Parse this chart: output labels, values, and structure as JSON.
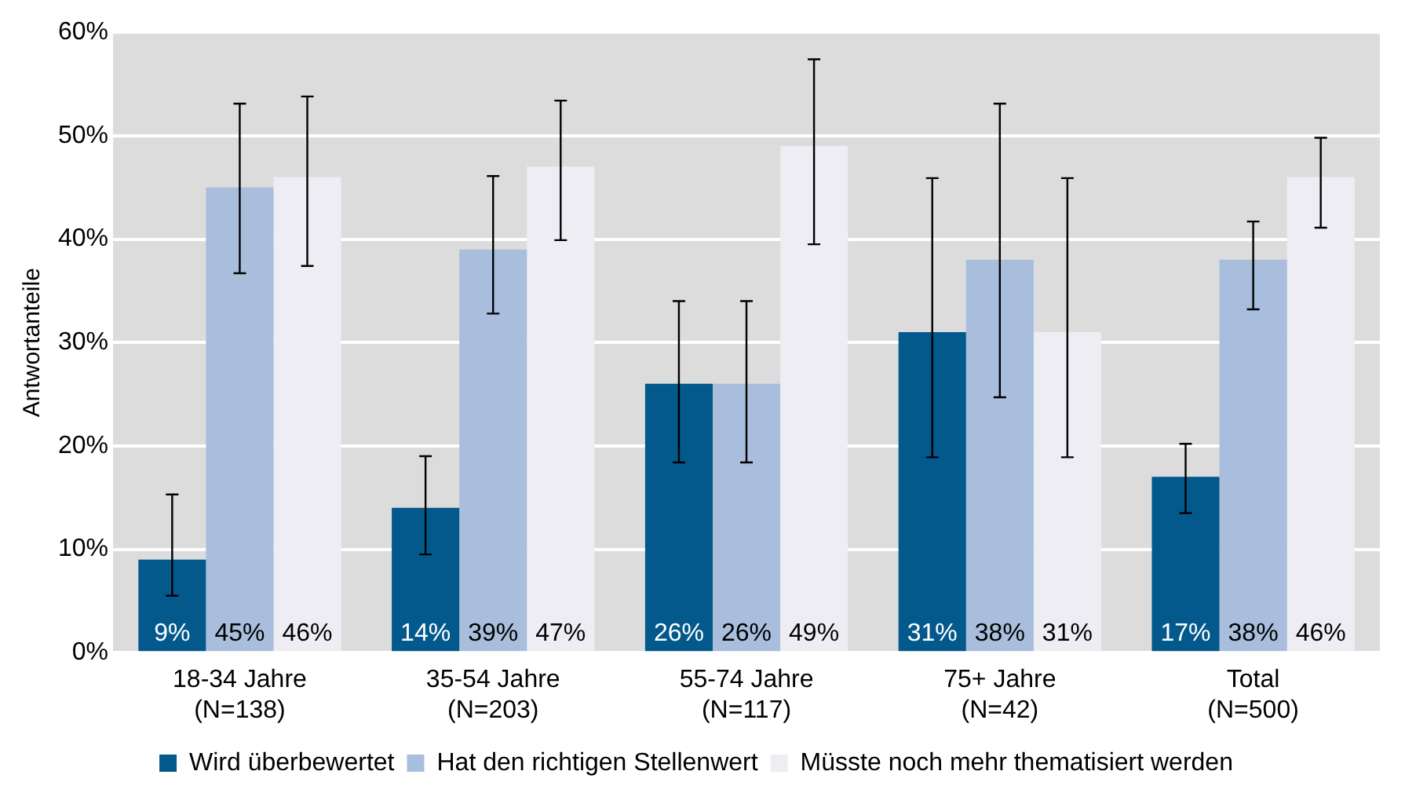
{
  "chart_data": {
    "type": "bar",
    "ylabel": "Antwortanteile",
    "categories": [
      "18-34 Jahre\n(N=138)",
      "35-54 Jahre\n(N=203)",
      "55-74 Jahre\n(N=117)",
      "75+ Jahre\n(N=42)",
      "Total\n(N=500)"
    ],
    "series": [
      {
        "name": "Wird überbewertet",
        "color": "#03598c",
        "values": [
          9,
          14,
          26,
          31,
          17
        ],
        "value_labels": [
          "9%",
          "14%",
          "26%",
          "31%",
          "17%"
        ],
        "errors": [
          [
            5.5,
            15.3
          ],
          [
            9.5,
            19.0
          ],
          [
            18.4,
            34.0
          ],
          [
            18.9,
            45.9
          ],
          [
            13.5,
            20.2
          ]
        ]
      },
      {
        "name": "Hat den richtigen Stellenwert",
        "color": "#a8bedc",
        "values": [
          45,
          39,
          26,
          38,
          38
        ],
        "value_labels": [
          "45%",
          "39%",
          "26%",
          "38%",
          "38%"
        ],
        "errors": [
          [
            36.7,
            53.1
          ],
          [
            32.8,
            46.1
          ],
          [
            18.4,
            34.0
          ],
          [
            24.7,
            53.1
          ],
          [
            33.2,
            41.7
          ]
        ]
      },
      {
        "name": "Müsste noch mehr thematisiert werden",
        "color": "#efedf4",
        "values": [
          46,
          47,
          49,
          31,
          46
        ],
        "value_labels": [
          "46%",
          "47%",
          "49%",
          "31%",
          "46%"
        ],
        "errors": [
          [
            37.4,
            53.8
          ],
          [
            39.9,
            53.4
          ],
          [
            39.5,
            57.4
          ],
          [
            18.9,
            45.9
          ],
          [
            41.1,
            49.8
          ]
        ]
      }
    ],
    "ylim": [
      0,
      60
    ],
    "yticks": [
      {
        "value": 0,
        "label": "0%"
      },
      {
        "value": 10,
        "label": "10%"
      },
      {
        "value": 20,
        "label": "20%"
      },
      {
        "value": 30,
        "label": "30%"
      },
      {
        "value": 40,
        "label": "40%"
      },
      {
        "value": 50,
        "label": "50%"
      },
      {
        "value": 60,
        "label": "60%"
      }
    ],
    "grid": "y",
    "legend": "bottom"
  }
}
